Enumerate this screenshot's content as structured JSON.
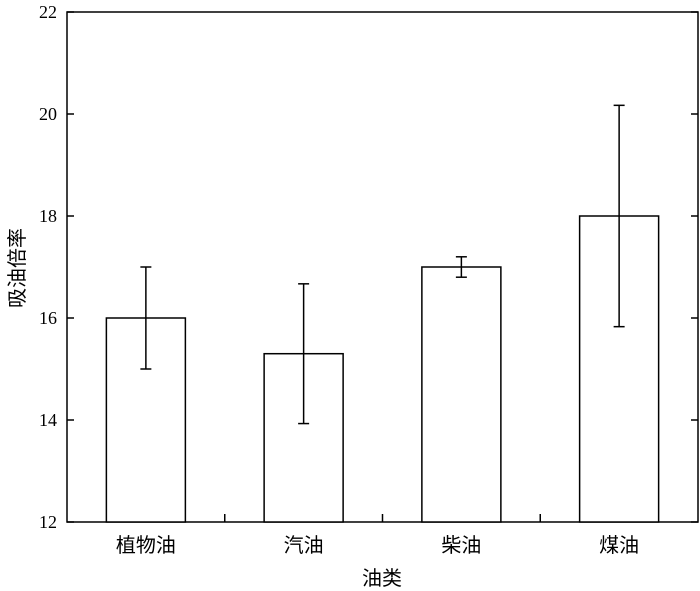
{
  "chart_data": {
    "type": "bar",
    "categories": [
      "植物油",
      "汽油",
      "柴油",
      "煤油"
    ],
    "values": [
      16.0,
      15.3,
      17.0,
      18.0
    ],
    "error_low": [
      15.0,
      13.93,
      16.8,
      15.83
    ],
    "error_high": [
      17.0,
      16.67,
      17.2,
      20.17
    ],
    "xlabel": "油类",
    "ylabel": "吸油倍率",
    "ylim": [
      12,
      22
    ],
    "yticks": [
      12,
      14,
      16,
      18,
      20,
      22
    ],
    "bar_fill": "#ffffff",
    "stroke_color": "#000000",
    "grid": false,
    "legend": "none"
  }
}
